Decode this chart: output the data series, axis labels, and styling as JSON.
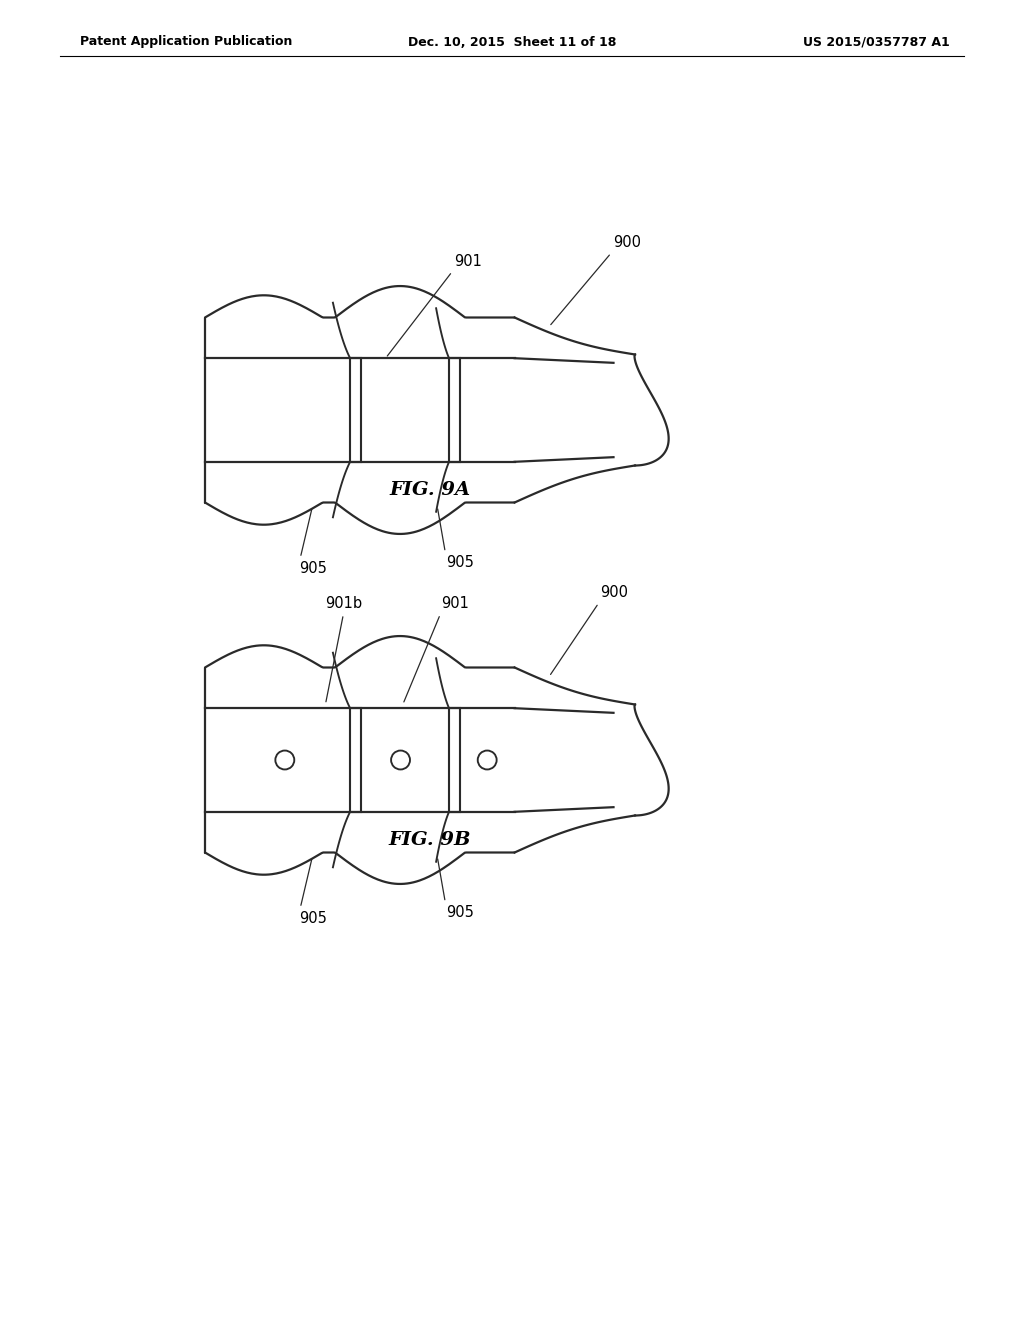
{
  "background_color": "#ffffff",
  "header_left": "Patent Application Publication",
  "header_center": "Dec. 10, 2015  Sheet 11 of 18",
  "header_right": "US 2015/0357787 A1",
  "fig9a_label": "FIG. 9A",
  "fig9b_label": "FIG. 9B",
  "line_color": "#2a2a2a",
  "line_width": 1.6,
  "annotation_fontsize": 10.5
}
